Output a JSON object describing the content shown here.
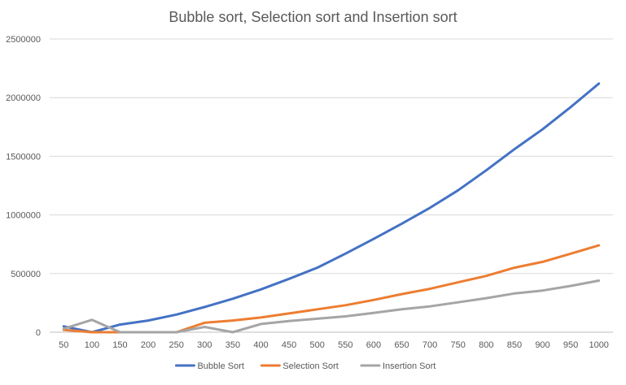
{
  "chart_data": {
    "type": "line",
    "title": "Bubble sort, Selection sort and Insertion sort",
    "xlabel": "",
    "ylabel": "",
    "x": [
      50,
      100,
      150,
      200,
      250,
      300,
      350,
      400,
      450,
      500,
      550,
      600,
      650,
      700,
      750,
      800,
      850,
      900,
      950,
      1000
    ],
    "y_ticks": [
      "0",
      "500000",
      "1000000",
      "1500000",
      "2000000",
      "2500000"
    ],
    "ylim": [
      0,
      2500000
    ],
    "grid": true,
    "legend_position": "bottom",
    "series": [
      {
        "name": "Bubble Sort",
        "color": "#4472c4",
        "values": [
          50000,
          0,
          65000,
          100000,
          150000,
          215000,
          285000,
          365000,
          455000,
          550000,
          670000,
          795000,
          925000,
          1060000,
          1210000,
          1380000,
          1560000,
          1730000,
          1920000,
          2120000
        ]
      },
      {
        "name": "Selection Sort",
        "color": "#ed7d31",
        "values": [
          20000,
          0,
          0,
          0,
          0,
          80000,
          100000,
          125000,
          160000,
          195000,
          230000,
          275000,
          325000,
          370000,
          425000,
          480000,
          550000,
          600000,
          670000,
          740000
        ]
      },
      {
        "name": "Insertion Sort",
        "color": "#a5a5a5",
        "values": [
          30000,
          105000,
          0,
          0,
          0,
          45000,
          0,
          70000,
          95000,
          115000,
          135000,
          165000,
          195000,
          220000,
          255000,
          290000,
          330000,
          355000,
          395000,
          440000
        ]
      }
    ]
  }
}
